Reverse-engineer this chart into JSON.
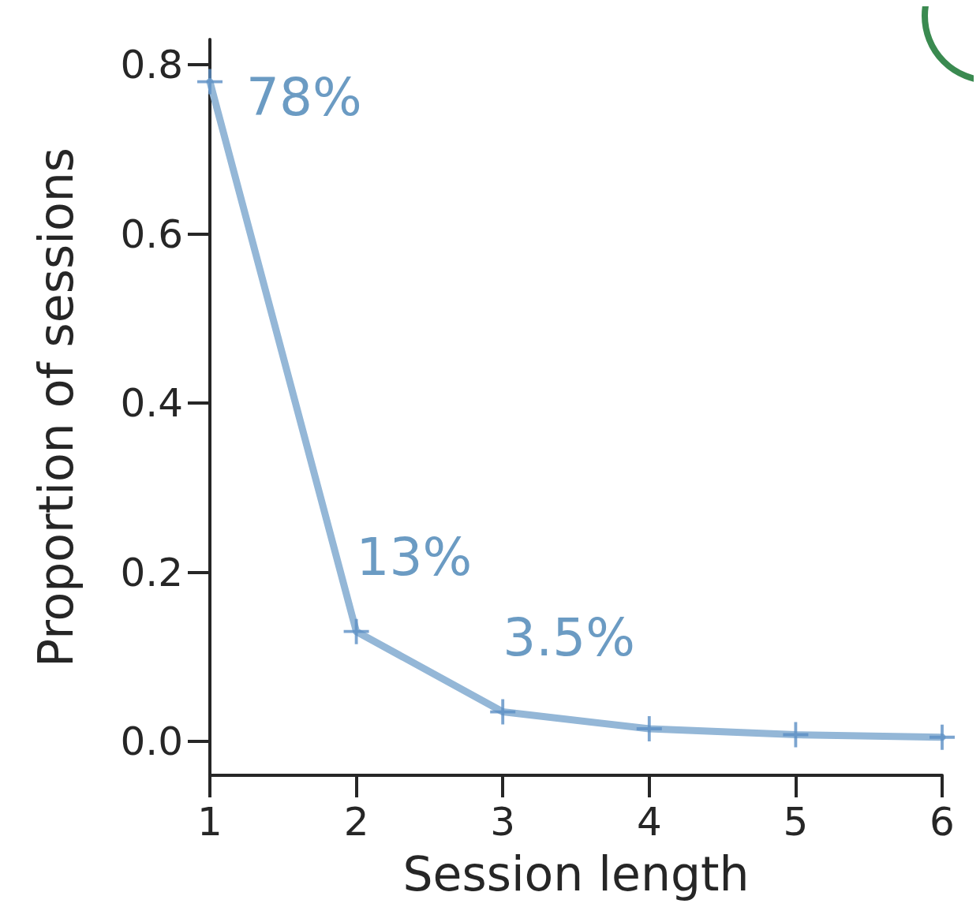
{
  "chart_data": {
    "type": "line",
    "xlabel": "Session length",
    "ylabel": "Proportion of sessions",
    "x": [
      1,
      2,
      3,
      4,
      5,
      6
    ],
    "series": [
      {
        "color": "#94b7d7",
        "values": [
          0.78,
          0.13,
          0.035,
          0.015,
          0.008,
          0.005
        ],
        "value_labels": [
          "78%",
          "13%",
          "3.5%",
          null,
          null,
          null
        ]
      }
    ],
    "xlim": [
      1,
      6
    ],
    "xticks": [
      1,
      2,
      3,
      4,
      5,
      6
    ],
    "ylim": [
      -0.04,
      0.83
    ],
    "yticks": [
      {
        "value": 0,
        "label": "0.0"
      },
      {
        "value": 0.2,
        "label": "0.2"
      },
      {
        "value": 0.4,
        "label": "0.4"
      },
      {
        "value": 0.6,
        "label": "0.6"
      },
      {
        "value": 0.8,
        "label": "0.8"
      }
    ],
    "marker": "cross",
    "line_style": "solid",
    "grid": false
  }
}
